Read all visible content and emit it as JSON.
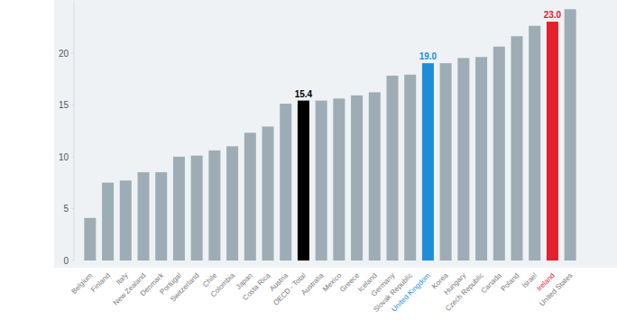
{
  "chart_data": {
    "type": "bar",
    "categories": [
      "Belgium",
      "Finland",
      "Italy",
      "New Zealand",
      "Denmark",
      "Portugal",
      "Switzerland",
      "Chile",
      "Colombia",
      "Japan",
      "Costa Rica",
      "Austria",
      "OECD - Total",
      "Australia",
      "Mexico",
      "Greece",
      "Iceland",
      "Germany",
      "Slovak Republic",
      "United Kingdom",
      "Korea",
      "Hungary",
      "Czech Republic",
      "Canada",
      "Poland",
      "Israel",
      "Ireland",
      "United States"
    ],
    "values": [
      4.1,
      7.5,
      7.7,
      8.5,
      8.5,
      10.0,
      10.1,
      10.6,
      11.0,
      12.3,
      12.9,
      15.1,
      15.4,
      15.4,
      15.6,
      15.9,
      16.2,
      17.8,
      17.9,
      19.0,
      19.0,
      19.5,
      19.6,
      20.6,
      21.6,
      22.6,
      23.0,
      24.2
    ],
    "value_labels": [
      null,
      null,
      null,
      null,
      null,
      null,
      null,
      null,
      null,
      null,
      null,
      null,
      "15.4",
      null,
      null,
      null,
      null,
      null,
      null,
      "19.0",
      null,
      null,
      null,
      null,
      null,
      null,
      "23.0",
      null
    ],
    "colors": [
      "#9eacb5",
      "#9eacb5",
      "#9eacb5",
      "#9eacb5",
      "#9eacb5",
      "#9eacb5",
      "#9eacb5",
      "#9eacb5",
      "#9eacb5",
      "#9eacb5",
      "#9eacb5",
      "#9eacb5",
      "#000000",
      "#9eacb5",
      "#9eacb5",
      "#9eacb5",
      "#9eacb5",
      "#9eacb5",
      "#9eacb5",
      "#1f8dd6",
      "#9eacb5",
      "#9eacb5",
      "#9eacb5",
      "#9eacb5",
      "#9eacb5",
      "#9eacb5",
      "#e3202b",
      "#9eacb5"
    ],
    "ylim": [
      0,
      25
    ],
    "yticks": [
      0,
      5,
      10,
      15,
      20
    ],
    "grid": false
  }
}
